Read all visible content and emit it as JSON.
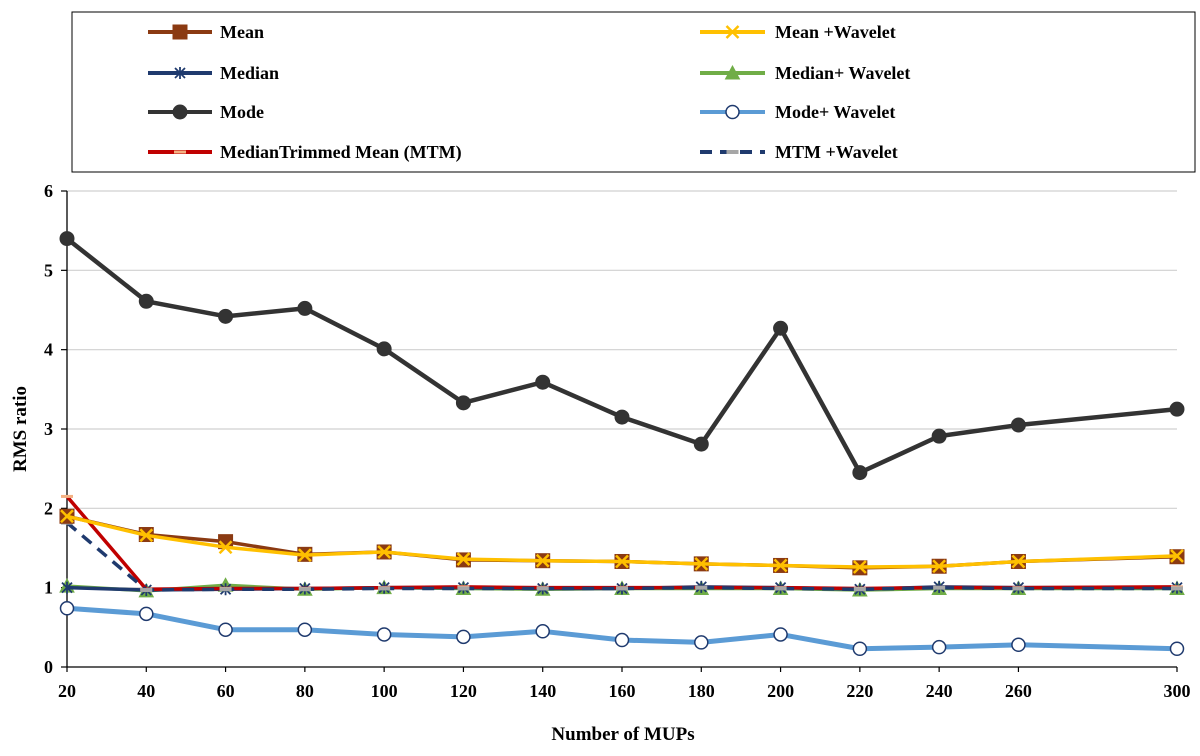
{
  "chart_data": {
    "type": "line",
    "xlabel": "Number of MUPs",
    "ylabel": "RMS ratio",
    "ylim": [
      0,
      6
    ],
    "grid": "horizontal",
    "legend_position": "top",
    "x": [
      20,
      40,
      60,
      80,
      100,
      120,
      140,
      160,
      180,
      200,
      220,
      240,
      260,
      300
    ],
    "x_tick_labels": [
      "20",
      "40",
      "60",
      "80",
      "100",
      "120",
      "140",
      "160",
      "180",
      "200",
      "220",
      "240",
      "260",
      "300"
    ],
    "y_ticks": [
      0,
      1,
      2,
      3,
      4,
      5,
      6
    ],
    "series": [
      {
        "name": "Mean",
        "color": "#8B3A12",
        "marker": "square",
        "dash": "solid",
        "values": [
          1.9,
          1.67,
          1.58,
          1.42,
          1.45,
          1.35,
          1.34,
          1.33,
          1.3,
          1.28,
          1.25,
          1.27,
          1.33,
          1.39
        ]
      },
      {
        "name": "Median",
        "color": "#1F3A6E",
        "marker": "asterisk",
        "dash": "solid",
        "values": [
          1.0,
          0.97,
          0.98,
          0.99,
          1.0,
          1.0,
          0.99,
          0.99,
          1.01,
          1.0,
          0.98,
          1.01,
          1.0,
          1.0
        ]
      },
      {
        "name": "Mode",
        "color": "#333333",
        "marker": "circle-filled",
        "dash": "solid",
        "values": [
          5.4,
          4.61,
          4.42,
          4.52,
          4.01,
          3.33,
          3.59,
          3.15,
          2.81,
          4.27,
          2.45,
          2.91,
          3.05,
          3.25
        ]
      },
      {
        "name": "MedianTrimmed Mean (MTM)",
        "color": "#C00000",
        "marker": "dash-orange",
        "dash": "solid",
        "values": [
          2.15,
          0.98,
          0.99,
          0.99,
          1.0,
          1.01,
          1.0,
          1.0,
          1.0,
          1.0,
          0.99,
          1.0,
          1.0,
          1.01
        ]
      },
      {
        "name": "Mean +Wavelet",
        "color": "#FFC000",
        "marker": "x",
        "dash": "solid",
        "values": [
          1.9,
          1.66,
          1.51,
          1.41,
          1.45,
          1.36,
          1.34,
          1.33,
          1.3,
          1.28,
          1.26,
          1.27,
          1.33,
          1.4
        ]
      },
      {
        "name": "Median+ Wavelet",
        "color": "#70AD47",
        "marker": "triangle",
        "dash": "solid",
        "values": [
          1.02,
          0.96,
          1.03,
          0.98,
          1.0,
          0.99,
          0.98,
          0.99,
          0.99,
          0.99,
          0.97,
          0.99,
          0.99,
          0.99
        ]
      },
      {
        "name": "Mode+ Wavelet",
        "color": "#5B9BD5",
        "marker": "circle-open",
        "dash": "solid",
        "values": [
          0.74,
          0.67,
          0.47,
          0.47,
          0.41,
          0.38,
          0.45,
          0.34,
          0.31,
          0.41,
          0.23,
          0.25,
          0.28,
          0.23
        ]
      },
      {
        "name": "MTM +Wavelet",
        "color": "#1F3A6E",
        "marker": "dash-gray",
        "dash": "dashed",
        "values": [
          1.82,
          0.97,
          0.98,
          0.98,
          0.99,
          0.99,
          0.99,
          0.99,
          1.0,
          0.99,
          0.98,
          1.0,
          0.99,
          0.99
        ]
      }
    ]
  }
}
